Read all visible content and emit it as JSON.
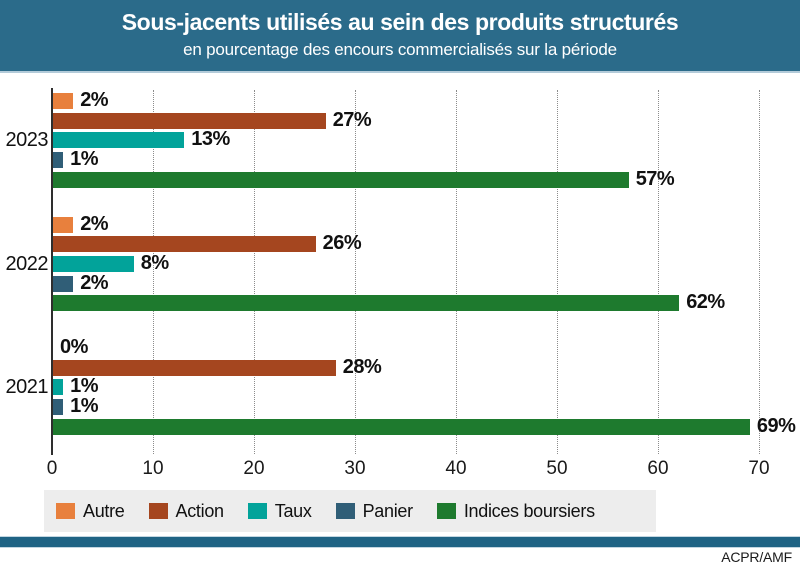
{
  "header": {
    "title": "Sous-jacents utilisés au sein des produits structurés",
    "subtitle": "en pourcentage des encours commercialisés sur la période"
  },
  "source": "ACPR/AMF",
  "colors": {
    "header_bg": "#2B6B8A",
    "bottom_bar": "#1F6384",
    "legend_bg": "#EDEDED",
    "gridline": "#8C8C8C"
  },
  "chart_data": {
    "type": "bar",
    "orientation": "horizontal",
    "title": "Sous-jacents utilisés au sein des produits structurés",
    "subtitle": "en pourcentage des encours commercialisés sur la période",
    "categories": [
      "2023",
      "2022",
      "2021"
    ],
    "series": [
      {
        "name": "Autre",
        "color": "#E8803D",
        "values": [
          2,
          2,
          0
        ]
      },
      {
        "name": "Action",
        "color": "#A5461F",
        "values": [
          27,
          26,
          28
        ]
      },
      {
        "name": "Taux",
        "color": "#02A39A",
        "values": [
          13,
          8,
          1
        ]
      },
      {
        "name": "Panier",
        "color": "#305E77",
        "values": [
          1,
          2,
          1
        ]
      },
      {
        "name": "Indices boursiers",
        "color": "#1E7A2E",
        "values": [
          57,
          62,
          69
        ]
      }
    ],
    "xlim": [
      0,
      70
    ],
    "xticks": [
      0,
      10,
      20,
      30,
      40,
      50,
      60,
      70
    ],
    "value_suffix": "%",
    "grid": "dotted-vertical",
    "legend_position": "bottom"
  }
}
